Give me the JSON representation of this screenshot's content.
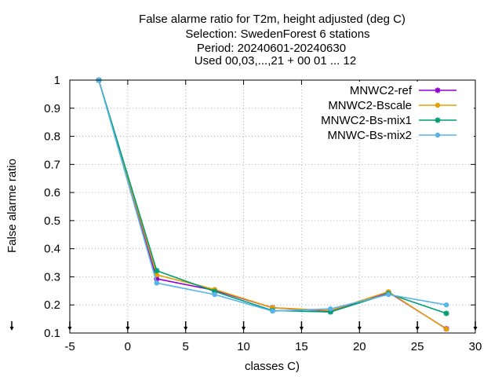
{
  "chart_data": {
    "type": "line",
    "title_lines": [
      "False alarme ratio  for T2m, height adjusted (deg C)",
      "Selection: SwedenForest      6 stations",
      "Period: 20240601-20240630",
      "Used 00,03,...,21 + 00 01 ... 12"
    ],
    "xlabel": "classes C)",
    "ylabel": "False alarme ratio",
    "xlim": [
      -5,
      30
    ],
    "ylim": [
      0.1,
      1.0
    ],
    "xticks": [
      -5,
      0,
      5,
      10,
      15,
      20,
      25,
      30
    ],
    "yticks": [
      0.1,
      0.2,
      0.3,
      0.4,
      0.5,
      0.6,
      0.7,
      0.8,
      0.9,
      1.0
    ],
    "xtick_labels": [
      "-5",
      "0",
      "5",
      "10",
      "15",
      "20",
      "25",
      "30"
    ],
    "ytick_labels": [
      "0.1",
      "0.2",
      "0.3",
      "0.4",
      "0.5",
      "0.6",
      "0.7",
      "0.8",
      "0.9",
      "1"
    ],
    "grid": true,
    "legend_position": "top-right",
    "class_marker_x": [
      -5,
      0,
      5,
      10,
      15,
      20,
      25,
      30
    ],
    "series": [
      {
        "name": "MNWC2-ref",
        "color": "#9400d3",
        "marker": "star",
        "x": [
          -2.5,
          2.5,
          7.5,
          12.5,
          17.5,
          22.5,
          27.5
        ],
        "y": [
          1.0,
          0.293,
          0.252,
          0.19,
          0.178,
          0.245,
          0.115
        ]
      },
      {
        "name": "MNWC2-Bscale",
        "color": "#e69f00",
        "marker": "circle",
        "x": [
          -2.5,
          2.5,
          7.5,
          12.5,
          17.5,
          22.5,
          27.5
        ],
        "y": [
          1.0,
          0.307,
          0.255,
          0.19,
          0.18,
          0.247,
          0.114
        ]
      },
      {
        "name": "MNWC2-Bs-mix1",
        "color": "#009e73",
        "marker": "star",
        "x": [
          -2.5,
          2.5,
          7.5,
          12.5,
          17.5,
          22.5,
          27.5
        ],
        "y": [
          1.0,
          0.322,
          0.248,
          0.18,
          0.175,
          0.24,
          0.17
        ]
      },
      {
        "name": "MNWC-Bs-mix2",
        "color": "#56b4e9",
        "marker": "circle",
        "x": [
          -2.5,
          2.5,
          7.5,
          12.5,
          17.5,
          22.5,
          27.5
        ],
        "y": [
          1.0,
          0.278,
          0.237,
          0.178,
          0.186,
          0.237,
          0.2
        ]
      }
    ]
  }
}
